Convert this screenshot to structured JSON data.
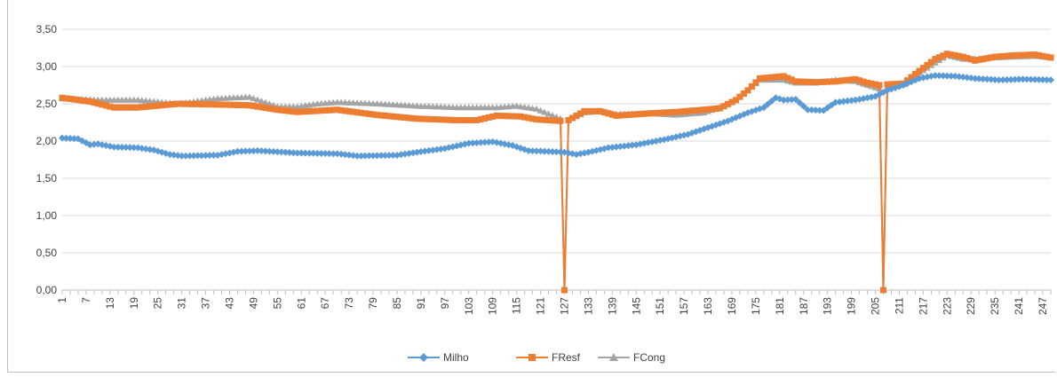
{
  "chart_data": {
    "type": "line",
    "title": "",
    "xlabel": "",
    "ylabel": "",
    "ylim": [
      0,
      3.5
    ],
    "yticks": [
      "0,00",
      "0,50",
      "1,00",
      "1,50",
      "2,00",
      "2,50",
      "3,00",
      "3,50"
    ],
    "x_range": [
      1,
      249
    ],
    "x_tick_step": 2,
    "x_label_start": 1,
    "x_label_step": 6,
    "grid": true,
    "legend_position": "bottom",
    "series": [
      {
        "name": "Milho",
        "color": "#5b9bd5",
        "marker": "diamond",
        "points": [
          [
            1,
            2.04
          ],
          [
            5,
            2.03
          ],
          [
            8,
            1.95
          ],
          [
            10,
            1.96
          ],
          [
            14,
            1.92
          ],
          [
            20,
            1.91
          ],
          [
            24,
            1.88
          ],
          [
            28,
            1.82
          ],
          [
            31,
            1.8
          ],
          [
            40,
            1.81
          ],
          [
            45,
            1.86
          ],
          [
            50,
            1.87
          ],
          [
            60,
            1.84
          ],
          [
            70,
            1.83
          ],
          [
            75,
            1.8
          ],
          [
            85,
            1.81
          ],
          [
            90,
            1.85
          ],
          [
            97,
            1.9
          ],
          [
            103,
            1.97
          ],
          [
            109,
            1.99
          ],
          [
            114,
            1.94
          ],
          [
            118,
            1.87
          ],
          [
            123,
            1.86
          ],
          [
            127,
            1.85
          ],
          [
            130,
            1.82
          ],
          [
            133,
            1.85
          ],
          [
            138,
            1.91
          ],
          [
            145,
            1.95
          ],
          [
            152,
            2.02
          ],
          [
            158,
            2.09
          ],
          [
            163,
            2.18
          ],
          [
            168,
            2.27
          ],
          [
            173,
            2.38
          ],
          [
            177,
            2.45
          ],
          [
            180,
            2.58
          ],
          [
            182,
            2.55
          ],
          [
            185,
            2.56
          ],
          [
            188,
            2.42
          ],
          [
            192,
            2.41
          ],
          [
            195,
            2.52
          ],
          [
            200,
            2.55
          ],
          [
            205,
            2.6
          ],
          [
            208,
            2.68
          ],
          [
            212,
            2.75
          ],
          [
            216,
            2.84
          ],
          [
            220,
            2.88
          ],
          [
            225,
            2.87
          ],
          [
            230,
            2.84
          ],
          [
            236,
            2.82
          ],
          [
            242,
            2.83
          ],
          [
            249,
            2.82
          ]
        ]
      },
      {
        "name": "FResf",
        "color": "#ed7d31",
        "marker": "square",
        "points": [
          [
            1,
            2.58
          ],
          [
            8,
            2.53
          ],
          [
            14,
            2.45
          ],
          [
            20,
            2.45
          ],
          [
            30,
            2.5
          ],
          [
            40,
            2.49
          ],
          [
            48,
            2.48
          ],
          [
            55,
            2.42
          ],
          [
            60,
            2.39
          ],
          [
            70,
            2.42
          ],
          [
            80,
            2.35
          ],
          [
            90,
            2.3
          ],
          [
            100,
            2.28
          ],
          [
            105,
            2.28
          ],
          [
            110,
            2.34
          ],
          [
            116,
            2.33
          ],
          [
            120,
            2.29
          ],
          [
            126,
            2.27
          ],
          [
            127,
            0
          ],
          [
            128,
            2.28
          ],
          [
            132,
            2.4
          ],
          [
            136,
            2.4
          ],
          [
            140,
            2.34
          ],
          [
            148,
            2.37
          ],
          [
            155,
            2.39
          ],
          [
            162,
            2.42
          ],
          [
            166,
            2.44
          ],
          [
            170,
            2.55
          ],
          [
            173,
            2.68
          ],
          [
            176,
            2.84
          ],
          [
            182,
            2.87
          ],
          [
            185,
            2.8
          ],
          [
            190,
            2.79
          ],
          [
            195,
            2.8
          ],
          [
            200,
            2.83
          ],
          [
            203,
            2.78
          ],
          [
            206,
            2.75
          ],
          [
            207,
            0
          ],
          [
            208,
            2.76
          ],
          [
            212,
            2.77
          ],
          [
            215,
            2.9
          ],
          [
            220,
            3.1
          ],
          [
            223,
            3.17
          ],
          [
            227,
            3.13
          ],
          [
            230,
            3.08
          ],
          [
            235,
            3.13
          ],
          [
            240,
            3.15
          ],
          [
            245,
            3.16
          ],
          [
            249,
            3.12
          ]
        ]
      },
      {
        "name": "FCong",
        "color": "#a5a5a5",
        "marker": "triangle",
        "points": [
          [
            1,
            2.57
          ],
          [
            10,
            2.55
          ],
          [
            20,
            2.55
          ],
          [
            30,
            2.5
          ],
          [
            40,
            2.57
          ],
          [
            48,
            2.59
          ],
          [
            55,
            2.46
          ],
          [
            60,
            2.46
          ],
          [
            65,
            2.5
          ],
          [
            70,
            2.52
          ],
          [
            80,
            2.5
          ],
          [
            90,
            2.47
          ],
          [
            100,
            2.45
          ],
          [
            110,
            2.45
          ],
          [
            115,
            2.47
          ],
          [
            120,
            2.43
          ],
          [
            126,
            2.3
          ],
          [
            127,
            0
          ],
          [
            128,
            2.28
          ],
          [
            132,
            2.38
          ],
          [
            136,
            2.4
          ],
          [
            140,
            2.36
          ],
          [
            148,
            2.37
          ],
          [
            155,
            2.35
          ],
          [
            162,
            2.38
          ],
          [
            166,
            2.45
          ],
          [
            170,
            2.55
          ],
          [
            173,
            2.68
          ],
          [
            176,
            2.82
          ],
          [
            182,
            2.82
          ],
          [
            185,
            2.78
          ],
          [
            190,
            2.78
          ],
          [
            195,
            2.82
          ],
          [
            200,
            2.8
          ],
          [
            203,
            2.75
          ],
          [
            206,
            2.7
          ],
          [
            207,
            0
          ],
          [
            208,
            2.72
          ],
          [
            212,
            2.76
          ],
          [
            215,
            2.88
          ],
          [
            220,
            3.05
          ],
          [
            223,
            3.15
          ],
          [
            227,
            3.1
          ],
          [
            230,
            3.1
          ],
          [
            235,
            3.12
          ],
          [
            240,
            3.13
          ],
          [
            245,
            3.14
          ],
          [
            249,
            3.12
          ]
        ]
      }
    ]
  }
}
